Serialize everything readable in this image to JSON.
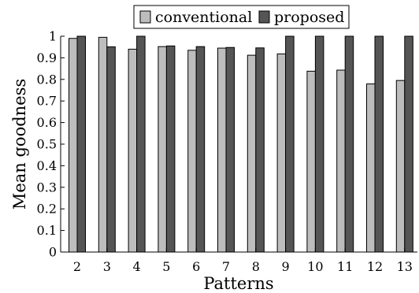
{
  "chart_data": {
    "type": "bar",
    "categories": [
      "2",
      "3",
      "4",
      "5",
      "6",
      "7",
      "8",
      "9",
      "10",
      "11",
      "12",
      "13"
    ],
    "series": [
      {
        "name": "conventional",
        "color": "#bdbdbd",
        "values": [
          0.99,
          0.995,
          0.94,
          0.952,
          0.935,
          0.945,
          0.912,
          0.918,
          0.838,
          0.843,
          0.779,
          0.795
        ]
      },
      {
        "name": "proposed",
        "color": "#555555",
        "values": [
          1.0,
          0.951,
          1.0,
          0.955,
          0.952,
          0.948,
          0.946,
          1.0,
          1.0,
          1.0,
          1.0,
          1.0
        ]
      }
    ],
    "yticks": [
      "0",
      "0.1",
      "0.2",
      "0.3",
      "0.4",
      "0.5",
      "0.6",
      "0.7",
      "0.8",
      "0.9",
      "1"
    ],
    "xlabel": "Patterns",
    "ylabel": "Mean goodness",
    "ylim": [
      0,
      1
    ],
    "grid": false,
    "legend_position": "top-center"
  }
}
